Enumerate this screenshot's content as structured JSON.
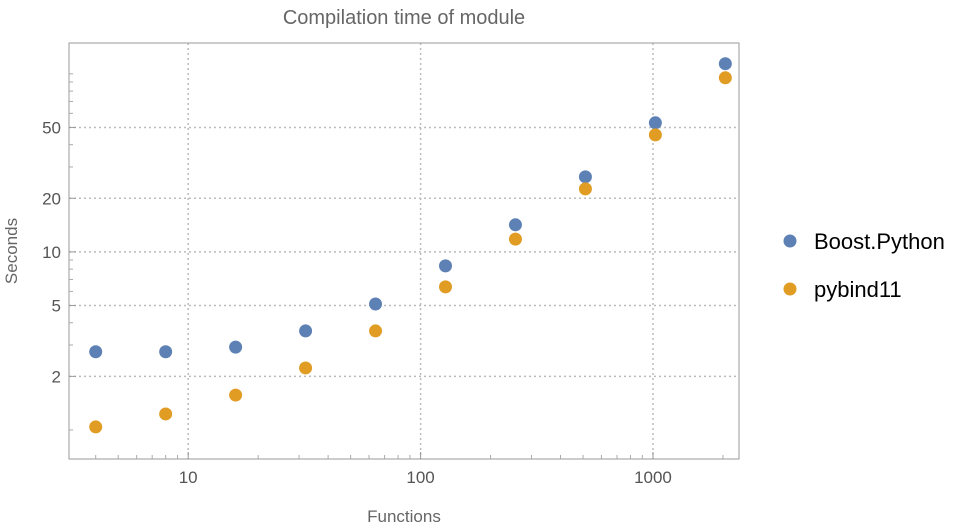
{
  "chart_data": {
    "type": "scatter",
    "title": "Compilation time of module",
    "xlabel": "Functions",
    "ylabel": "Seconds",
    "xscale": "log",
    "yscale": "log",
    "xlim": [
      3.07,
      2345
    ],
    "ylim": [
      0.687,
      149
    ],
    "grid": true,
    "legend_position": "right",
    "x_ticks": [
      10,
      100,
      1000
    ],
    "x_tick_labels": [
      "10",
      "100",
      "1000"
    ],
    "y_ticks": [
      2,
      5,
      10,
      20,
      50
    ],
    "y_tick_labels": [
      "2",
      "5",
      "10",
      "20",
      "50"
    ],
    "x": [
      4,
      8,
      16,
      32,
      64,
      128,
      256,
      512,
      1024,
      2048
    ],
    "series": [
      {
        "name": "Boost.Python",
        "color": "#5E81B5",
        "values": [
          2.75,
          2.75,
          2.92,
          3.6,
          5.1,
          8.35,
          14.2,
          26.4,
          53.1,
          114
        ]
      },
      {
        "name": "pybind11",
        "color": "#E19C24",
        "values": [
          1.04,
          1.23,
          1.57,
          2.23,
          3.6,
          6.36,
          11.8,
          22.6,
          45.4,
          95
        ]
      }
    ]
  }
}
